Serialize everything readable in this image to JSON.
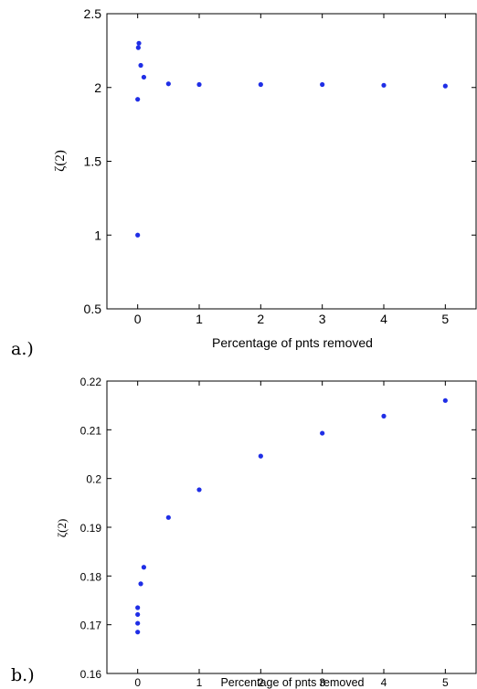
{
  "chart_data": [
    {
      "panel_label": "a.)",
      "type": "scatter",
      "xlabel": "Percentage of pnts removed",
      "ylabel": "ζ(2)",
      "xlim": [
        -0.5,
        5.5
      ],
      "ylim": [
        0.5,
        2.5
      ],
      "xticks": [
        0,
        1,
        2,
        3,
        4,
        5
      ],
      "yticks": [
        0.5,
        1,
        1.5,
        2,
        2.5
      ],
      "xtick_labels": [
        "0",
        "1",
        "2",
        "3",
        "4",
        "5"
      ],
      "ytick_labels": [
        "0.5",
        "1",
        "1.5",
        "2",
        "2.5"
      ],
      "grid": false,
      "marker_color": "#1f2ee6",
      "points": [
        {
          "x": 0,
          "y": 1.0
        },
        {
          "x": 0,
          "y": 1.92
        },
        {
          "x": 0.01,
          "y": 2.27
        },
        {
          "x": 0.02,
          "y": 2.3
        },
        {
          "x": 0.05,
          "y": 2.15
        },
        {
          "x": 0.1,
          "y": 2.07
        },
        {
          "x": 0.5,
          "y": 2.025
        },
        {
          "x": 1,
          "y": 2.02
        },
        {
          "x": 2,
          "y": 2.02
        },
        {
          "x": 3,
          "y": 2.02
        },
        {
          "x": 4,
          "y": 2.015
        },
        {
          "x": 5,
          "y": 2.01
        }
      ]
    },
    {
      "panel_label": "b.)",
      "type": "scatter",
      "xlabel": "Percentage of pnts removed",
      "ylabel": "ζ(2)",
      "xlim": [
        -0.5,
        5.5
      ],
      "ylim": [
        0.16,
        0.22
      ],
      "xticks": [
        0,
        1,
        2,
        3,
        4,
        5
      ],
      "yticks": [
        0.16,
        0.17,
        0.18,
        0.19,
        0.2,
        0.21,
        0.22
      ],
      "xtick_labels": [
        "0",
        "1",
        "2",
        "3",
        "4",
        "5"
      ],
      "ytick_labels": [
        "0.16",
        "0.17",
        "0.18",
        "0.19",
        "0.2",
        "0.21",
        "0.22"
      ],
      "grid": false,
      "marker_color": "#1f2ee6",
      "points": [
        {
          "x": 0,
          "y": 0.1685
        },
        {
          "x": 0,
          "y": 0.1703
        },
        {
          "x": 0,
          "y": 0.1721
        },
        {
          "x": 0,
          "y": 0.1735
        },
        {
          "x": 0.05,
          "y": 0.1784
        },
        {
          "x": 0.1,
          "y": 0.1818
        },
        {
          "x": 0.5,
          "y": 0.192
        },
        {
          "x": 1,
          "y": 0.1977
        },
        {
          "x": 2,
          "y": 0.2046
        },
        {
          "x": 3,
          "y": 0.2093
        },
        {
          "x": 4,
          "y": 0.2128
        },
        {
          "x": 5,
          "y": 0.216
        }
      ]
    }
  ]
}
